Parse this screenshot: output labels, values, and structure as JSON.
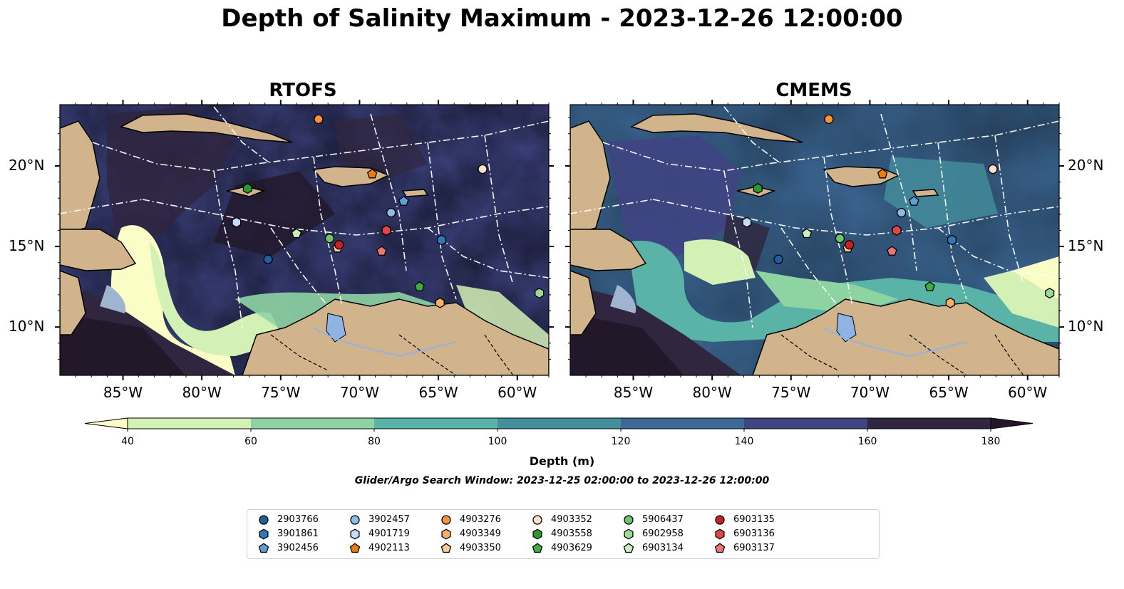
{
  "title": "Depth of Salinity Maximum - 2023-12-26 12:00:00",
  "panels": [
    {
      "title": "RTOFS"
    },
    {
      "title": "CMEMS"
    }
  ],
  "axes": {
    "lon_ticks": [
      "85°W",
      "80°W",
      "75°W",
      "70°W",
      "65°W",
      "60°W"
    ],
    "lat_ticks": [
      "20°N",
      "15°N",
      "10°N"
    ]
  },
  "colorbar": {
    "label": "Depth (m)",
    "ticks": [
      "40",
      "60",
      "80",
      "100",
      "120",
      "140",
      "160",
      "180"
    ],
    "colors": [
      "#fbfdc7",
      "#d3f0b5",
      "#8ed4a3",
      "#59b3a7",
      "#458e9e",
      "#3d6996",
      "#3f4583",
      "#30263f",
      "#221829"
    ]
  },
  "search_window": "Glider/Argo Search Window: 2023-12-25 02:00:00 to 2023-12-26 12:00:00",
  "land_color": "#d2b48c",
  "legend": [
    {
      "id": "2903766",
      "marker": "circle",
      "color": "#1f5fa0"
    },
    {
      "id": "3901861",
      "marker": "hexagon",
      "color": "#2f78b8"
    },
    {
      "id": "3902456",
      "marker": "pentagon",
      "color": "#5da0d6"
    },
    {
      "id": "3902457",
      "marker": "circle",
      "color": "#8fbbe8"
    },
    {
      "id": "4901719",
      "marker": "hexagon",
      "color": "#c4ddf5"
    },
    {
      "id": "4902113",
      "marker": "pentagon",
      "color": "#f07b0c"
    },
    {
      "id": "4903276",
      "marker": "circle",
      "color": "#f5943a"
    },
    {
      "id": "4903349",
      "marker": "hexagon",
      "color": "#f8b069"
    },
    {
      "id": "4903350",
      "marker": "pentagon",
      "color": "#fbcb98"
    },
    {
      "id": "4903352",
      "marker": "circle",
      "color": "#fde0c8"
    },
    {
      "id": "4903558",
      "marker": "hexagon",
      "color": "#2a9a2a"
    },
    {
      "id": "4903629",
      "marker": "pentagon",
      "color": "#3fae3f"
    },
    {
      "id": "5906437",
      "marker": "circle",
      "color": "#6cc46c"
    },
    {
      "id": "6902958",
      "marker": "hexagon",
      "color": "#9ddb95"
    },
    {
      "id": "6903134",
      "marker": "pentagon",
      "color": "#c8f0bd"
    },
    {
      "id": "6903135",
      "marker": "circle",
      "color": "#cc1f1f"
    },
    {
      "id": "6903136",
      "marker": "hexagon",
      "color": "#e24646"
    },
    {
      "id": "6903137",
      "marker": "pentagon",
      "color": "#ee7575"
    }
  ],
  "floats": [
    {
      "id": "2903766",
      "lon": -75.8,
      "lat": 14.2
    },
    {
      "id": "3901861",
      "lon": -64.8,
      "lat": 15.4
    },
    {
      "id": "3902456",
      "lon": -67.2,
      "lat": 17.8
    },
    {
      "id": "3902457",
      "lon": -68.0,
      "lat": 17.1
    },
    {
      "id": "4901719",
      "lon": -77.8,
      "lat": 16.5
    },
    {
      "id": "4902113",
      "lon": -69.2,
      "lat": 19.5
    },
    {
      "id": "4903276",
      "lon": -72.6,
      "lat": 22.9
    },
    {
      "id": "4903349",
      "lon": -64.9,
      "lat": 11.5
    },
    {
      "id": "4903350",
      "lon": -71.4,
      "lat": 14.9
    },
    {
      "id": "4903352",
      "lon": -62.2,
      "lat": 19.8
    },
    {
      "id": "4903558",
      "lon": -77.1,
      "lat": 18.6
    },
    {
      "id": "4903629",
      "lon": -66.2,
      "lat": 12.5
    },
    {
      "id": "5906437",
      "lon": -71.9,
      "lat": 15.5
    },
    {
      "id": "6902958",
      "lon": -58.6,
      "lat": 12.1
    },
    {
      "id": "6903134",
      "lon": -74.0,
      "lat": 15.8
    },
    {
      "id": "6903135",
      "lon": -71.3,
      "lat": 15.1
    },
    {
      "id": "6903136",
      "lon": -68.3,
      "lat": 16.0
    },
    {
      "id": "6903137",
      "lon": -68.6,
      "lat": 14.7
    }
  ]
}
